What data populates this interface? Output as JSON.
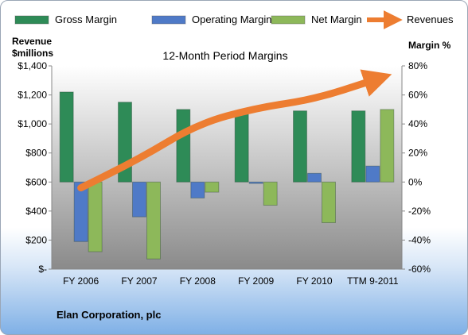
{
  "chart_data": {
    "type": "bar",
    "title": "12-Month Period Margins",
    "categories": [
      "FY 2006",
      "FY 2007",
      "FY 2008",
      "FY 2009",
      "FY 2010",
      "TTM 9-2011"
    ],
    "y_left": {
      "label_line1": "Revenue",
      "label_line2": "$millions",
      "range": [
        0,
        1400
      ],
      "ticks": [
        "$-",
        "$200",
        "$400",
        "$600",
        "$800",
        "$1,000",
        "$1,200",
        "$1,400"
      ]
    },
    "y_right": {
      "label": "Margin %",
      "range": [
        -60,
        80
      ],
      "ticks": [
        "-60%",
        "-40%",
        "-20%",
        "0%",
        "20%",
        "40%",
        "60%",
        "80%"
      ]
    },
    "series": [
      {
        "name": "Gross Margin",
        "type": "bar",
        "axis": "right",
        "color": "#2e8b57",
        "values": [
          62,
          55,
          50,
          49,
          49,
          49
        ]
      },
      {
        "name": "Operating Margin",
        "type": "bar",
        "axis": "right",
        "color": "#4f7ac7",
        "values": [
          -41,
          -24,
          -11,
          -1,
          6,
          11
        ]
      },
      {
        "name": "Net Margin",
        "type": "bar",
        "axis": "right",
        "color": "#8db85a",
        "values": [
          -48,
          -53,
          -7,
          -16,
          -28,
          50
        ]
      },
      {
        "name": "Revenues",
        "type": "line",
        "axis": "left",
        "color": "#ed7d31",
        "values": [
          560,
          760,
          1000,
          1110,
          1170,
          1300
        ]
      }
    ],
    "legend_position": "top",
    "grid": false
  },
  "footer": {
    "company": "Elan Corporation, plc"
  }
}
